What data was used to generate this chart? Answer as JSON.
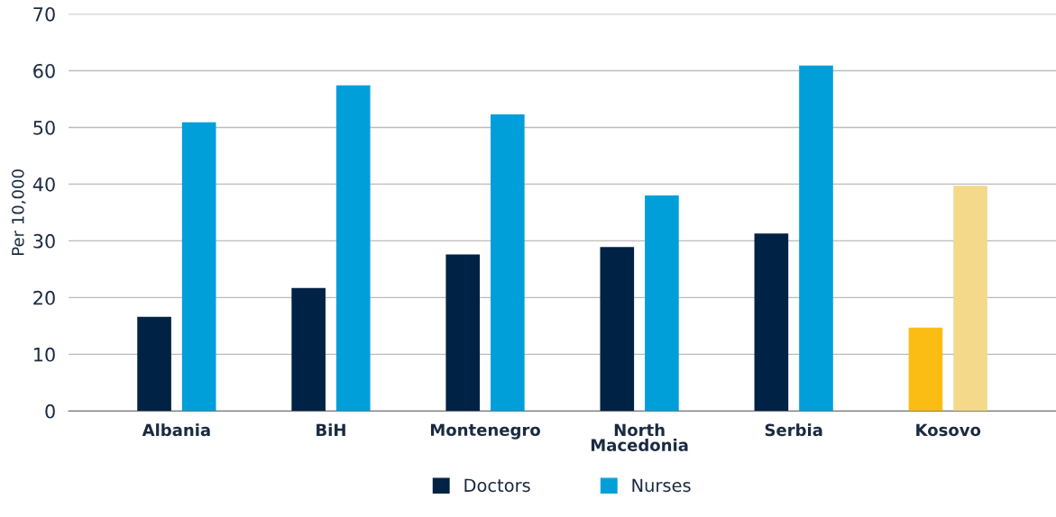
{
  "chart_data": {
    "type": "bar",
    "ylabel": "Per 10,000",
    "categories": [
      "Albania",
      "BiH",
      "Montenegro",
      "North\nMacedonia",
      "Serbia",
      "Kosovo"
    ],
    "series": [
      {
        "name": "Doctors",
        "color": "#002244",
        "colors": [
          "#002244",
          "#002244",
          "#002244",
          "#002244",
          "#002244",
          "#fbbd14"
        ],
        "values": [
          16.6,
          21.7,
          27.6,
          28.9,
          31.3,
          14.7
        ]
      },
      {
        "name": "Nurses",
        "color": "#009fda",
        "colors": [
          "#009fda",
          "#009fda",
          "#009fda",
          "#009fda",
          "#009fda",
          "#f4d98a"
        ],
        "values": [
          50.9,
          57.4,
          52.3,
          38.0,
          60.9,
          39.7
        ]
      }
    ],
    "ylim": [
      0,
      70
    ],
    "yticks": [
      0,
      10,
      20,
      30,
      40,
      50,
      60,
      70
    ],
    "grid": "y",
    "legend": "bottom"
  }
}
